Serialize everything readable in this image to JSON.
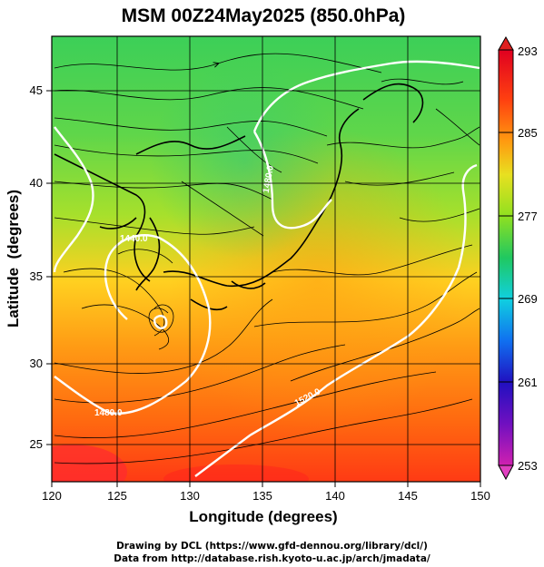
{
  "title": "MSM 00Z24May2025 (850.0hPa)",
  "x_axis": {
    "label": "Longitude (degrees)",
    "ticks": [
      "120",
      "125",
      "130",
      "135",
      "140",
      "145",
      "150"
    ],
    "range": [
      120,
      150
    ]
  },
  "y_axis": {
    "label": "Latitude  (degrees)",
    "ticks": [
      "25",
      "30",
      "35",
      "40",
      "45"
    ],
    "range": [
      22.4,
      47.6
    ]
  },
  "colorbar": {
    "ticks": [
      "293",
      "285",
      "277",
      "269",
      "261",
      "253"
    ],
    "range": [
      253,
      293
    ],
    "colors": [
      "#d020b0",
      "#2010c0",
      "#1070f0",
      "#10d0e0",
      "#20c860",
      "#90e020",
      "#e8e020",
      "#ff9a10",
      "#ff4010",
      "#e00020"
    ]
  },
  "contours": [
    {
      "label": "1480.0",
      "color": "#ffffff"
    },
    {
      "label": "1440.0",
      "color": "#ffffff"
    },
    {
      "label": "1480.0",
      "color": "#ffffff"
    },
    {
      "label": "1520.0",
      "color": "#ffffff"
    }
  ],
  "credits": {
    "line1": "Drawing by DCL (https://www.gfd-dennou.org/library/dcl/)",
    "line2": "Data from http://database.rish.kyoto-u.ac.jp/arch/jmadata/"
  }
}
